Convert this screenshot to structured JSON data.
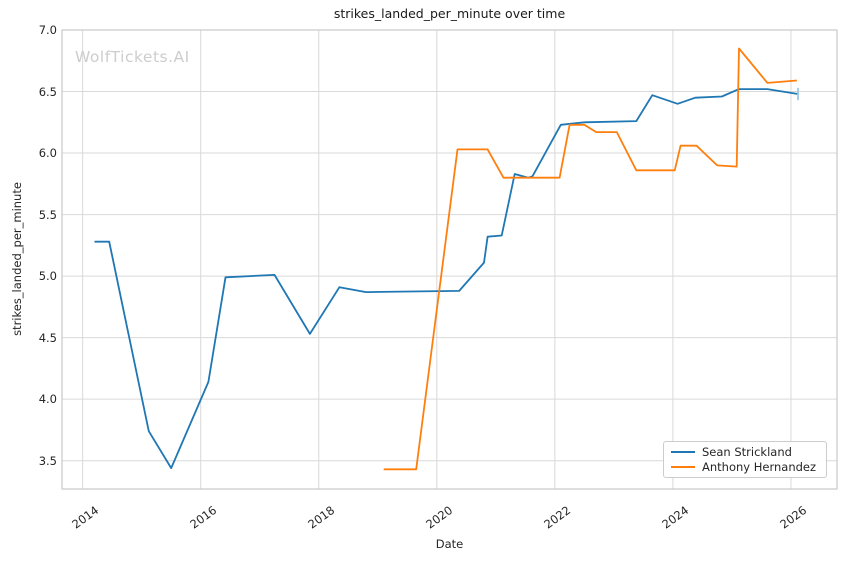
{
  "watermark": "WolfTickets.AI",
  "chart_data": {
    "type": "line",
    "title": "strikes_landed_per_minute over time",
    "xlabel": "Date",
    "ylabel": "strikes_landed_per_minute",
    "xlim": [
      2013.65,
      2026.78
    ],
    "ylim": [
      3.27,
      7.0
    ],
    "x_ticks": [
      2014,
      2016,
      2018,
      2020,
      2022,
      2024,
      2026
    ],
    "y_ticks": [
      3.5,
      4.0,
      4.5,
      5.0,
      5.5,
      6.0,
      6.5,
      7.0
    ],
    "grid": true,
    "legend_position": "lower right",
    "colors": {
      "grid": "#d9d9d9",
      "spine": "#c9c9c9",
      "text": "#262626"
    },
    "series": [
      {
        "name": "Sean Strickland",
        "color": "#1f77b4",
        "x": [
          2014.2,
          2014.45,
          2015.12,
          2015.5,
          2016.13,
          2016.42,
          2017.25,
          2017.85,
          2018.35,
          2018.8,
          2020.38,
          2020.8,
          2020.86,
          2021.1,
          2021.32,
          2021.55,
          2021.62,
          2022.1,
          2022.5,
          2023.38,
          2023.65,
          2024.08,
          2024.38,
          2024.83,
          2025.12,
          2025.6,
          2026.12
        ],
        "y": [
          5.28,
          5.28,
          3.74,
          3.44,
          4.14,
          4.99,
          5.01,
          4.53,
          4.91,
          4.87,
          4.88,
          5.11,
          5.32,
          5.33,
          5.83,
          5.8,
          5.81,
          6.23,
          6.25,
          6.26,
          6.47,
          6.4,
          6.45,
          6.46,
          6.52,
          6.52,
          6.48
        ]
      },
      {
        "name": "Anthony Hernandez",
        "color": "#ff7f0e",
        "x": [
          2019.1,
          2019.65,
          2020.35,
          2020.86,
          2021.13,
          2022.08,
          2022.25,
          2022.5,
          2022.7,
          2023.05,
          2023.38,
          2024.03,
          2024.13,
          2024.4,
          2024.75,
          2025.08,
          2025.12,
          2025.6,
          2026.1
        ],
        "y": [
          3.43,
          3.43,
          6.03,
          6.03,
          5.8,
          5.8,
          6.23,
          6.23,
          6.17,
          6.17,
          5.86,
          5.86,
          6.06,
          6.06,
          5.9,
          5.89,
          6.85,
          6.57,
          6.59
        ]
      }
    ],
    "end_marker": {
      "series": "Sean Strickland",
      "x": 2026.12,
      "y_low": 6.43,
      "y_high": 6.53,
      "color": "#9ec9e2"
    }
  }
}
